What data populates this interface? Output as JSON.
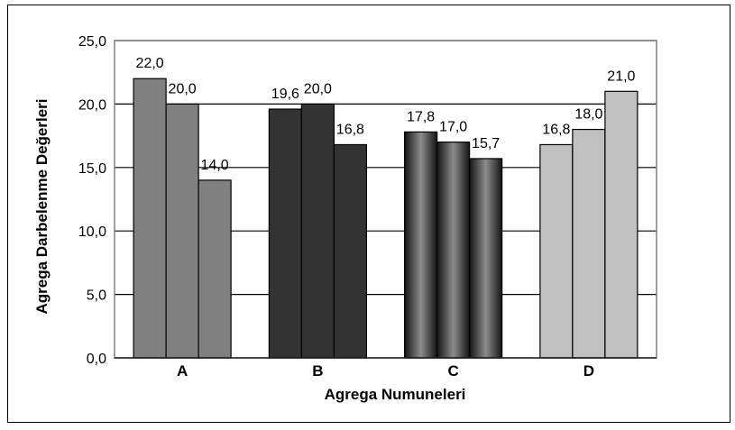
{
  "chart_data": {
    "type": "bar",
    "title": "",
    "xlabel": "Agrega Numuneleri",
    "ylabel": "Agrega Darbelenme Değerleri",
    "ylim": [
      0,
      25
    ],
    "yticks": [
      "0,0",
      "5,0",
      "10,0",
      "15,0",
      "20,0",
      "25,0"
    ],
    "grid": true,
    "legend": "none",
    "categories": [
      "A",
      "B",
      "C",
      "D"
    ],
    "groups": [
      {
        "category": "A",
        "values": [
          22.0,
          20.0,
          14.0
        ],
        "labels": [
          "22,0",
          "20,0",
          "14,0"
        ],
        "color": "#808080"
      },
      {
        "category": "B",
        "values": [
          19.6,
          20.0,
          16.8
        ],
        "labels": [
          "19,6",
          "20,0",
          "16,8"
        ],
        "color": "#333333"
      },
      {
        "category": "C",
        "values": [
          17.8,
          17.0,
          15.7
        ],
        "labels": [
          "17,8",
          "17,0",
          "15,7"
        ],
        "color": "#3a3a3a"
      },
      {
        "category": "D",
        "values": [
          16.8,
          18.0,
          21.0
        ],
        "labels": [
          "16,8",
          "18,0",
          "21,0"
        ],
        "color": "#c0c0c0"
      }
    ]
  }
}
